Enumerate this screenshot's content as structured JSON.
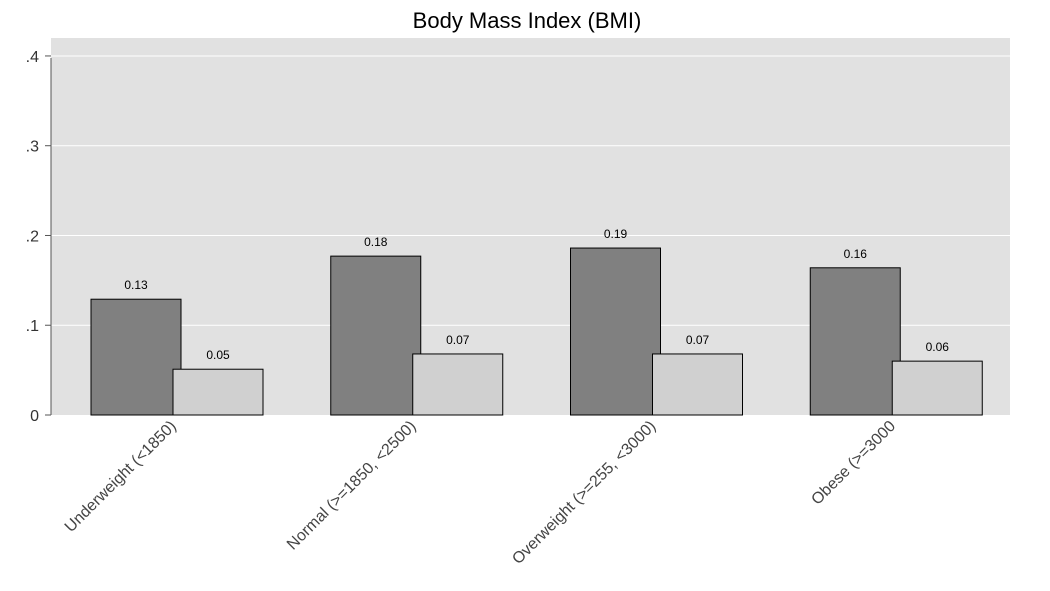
{
  "chart_data": {
    "type": "bar",
    "title": "Body Mass Index (BMI)",
    "xlabel": "",
    "ylabel": "",
    "categories": [
      "Underweight (<1850)",
      "Normal (>=1850, <2500)",
      "Overweight (>=255, <3000)",
      "Obese (>=3000"
    ],
    "series": [
      {
        "values": [
          0.129,
          0.177,
          0.186,
          0.164
        ],
        "labels": [
          "0.13",
          "0.18",
          "0.19",
          "0.16"
        ],
        "color": "#808080"
      },
      {
        "values": [
          0.051,
          0.068,
          0.068,
          0.06
        ],
        "labels": [
          "0.05",
          "0.07",
          "0.07",
          "0.06"
        ],
        "color": "#d0d0d0"
      }
    ],
    "ylim": [
      0,
      0.42
    ],
    "yticks": [
      0,
      0.1,
      0.2,
      0.3,
      0.4
    ],
    "ytick_labels": [
      "0",
      ".1",
      ".2",
      ".3",
      ".4"
    ],
    "grid": true,
    "background": "#e1e1e1",
    "legend": "none"
  }
}
